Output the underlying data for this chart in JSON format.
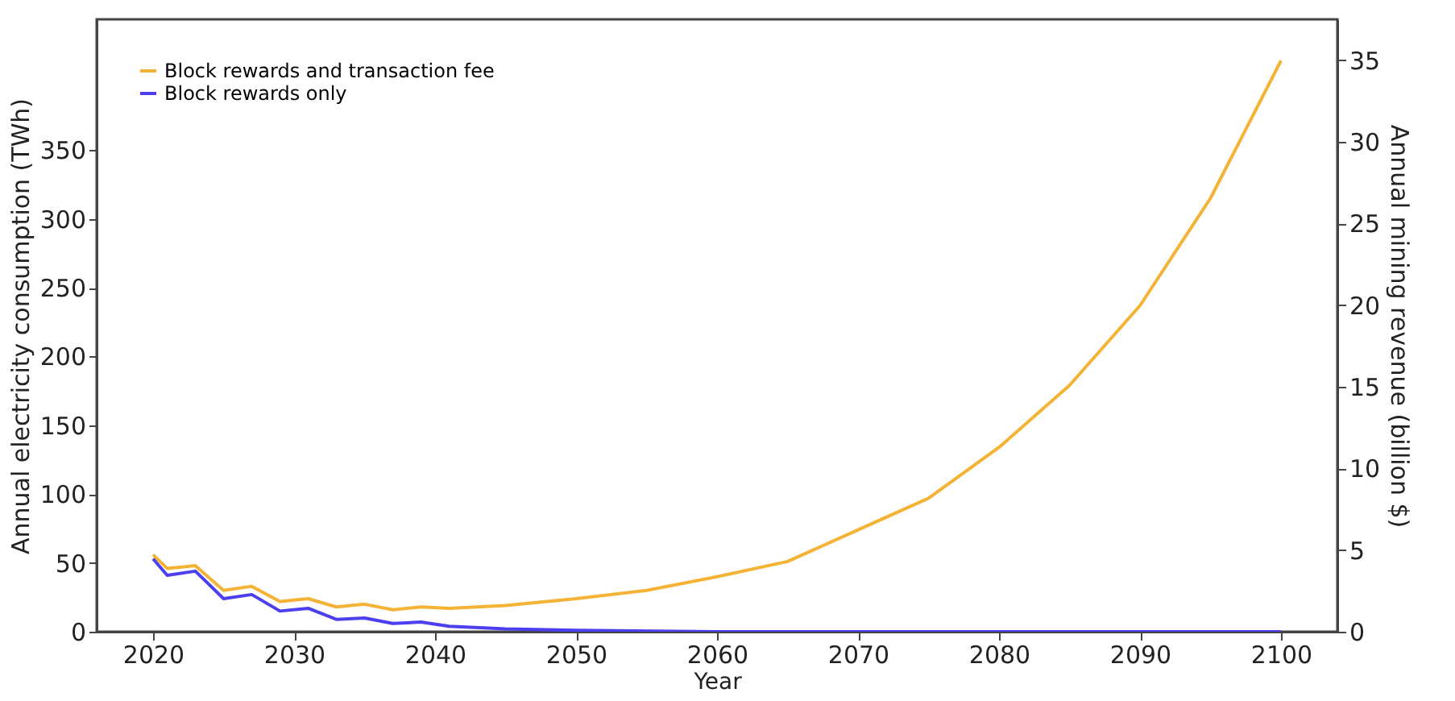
{
  "chart_data": {
    "type": "line",
    "xlabel": "Year",
    "ylabel": "Annual electricity consumption (TWh)",
    "y2label": "Annual mining revenue (billion $)",
    "xlim": [
      2016,
      2104
    ],
    "xticks": [
      2020,
      2030,
      2040,
      2050,
      2060,
      2070,
      2080,
      2090,
      2100
    ],
    "ylim": [
      0,
      445
    ],
    "yticks": [
      0,
      50,
      100,
      150,
      200,
      250,
      300,
      350
    ],
    "y2lim": [
      0,
      37.5
    ],
    "y2ticks": [
      0,
      5,
      10,
      15,
      20,
      25,
      30,
      35
    ],
    "legend": "top left",
    "grid": false,
    "marker": "none",
    "line_style": "solid",
    "series": [
      {
        "name": "Block rewards and transaction fee",
        "color": "#f5b335",
        "x": [
          2020,
          2021,
          2023,
          2025,
          2027,
          2029,
          2031,
          2033,
          2035,
          2037,
          2039,
          2041,
          2045,
          2050,
          2055,
          2060,
          2065,
          2070,
          2075,
          2080,
          2085,
          2090,
          2095,
          2100
        ],
        "values": [
          56,
          46,
          48,
          30,
          33,
          22,
          24,
          18,
          20,
          16,
          18,
          17,
          19,
          24,
          30,
          40,
          51,
          74,
          97,
          134,
          179,
          237,
          315,
          415
        ]
      },
      {
        "name": "Block rewards only",
        "color": "#4b3ff0",
        "x": [
          2020,
          2021,
          2023,
          2025,
          2027,
          2029,
          2031,
          2033,
          2035,
          2037,
          2039,
          2041,
          2045,
          2050,
          2060,
          2070,
          2080,
          2090,
          2100
        ],
        "values": [
          53,
          41,
          44,
          24,
          27,
          15,
          17,
          9,
          10,
          6,
          7,
          4,
          2,
          1,
          0,
          0,
          0,
          0,
          0
        ]
      }
    ]
  }
}
